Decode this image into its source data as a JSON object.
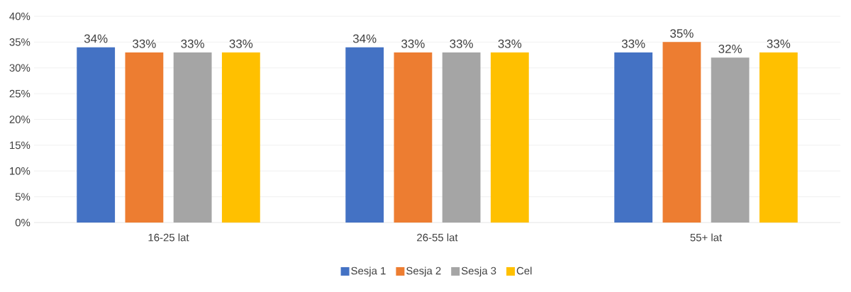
{
  "chart_data": {
    "type": "bar",
    "categories": [
      "16-25 lat",
      "26-55 lat",
      "55+ lat"
    ],
    "series": [
      {
        "name": "Sesja 1",
        "color": "#4472c4",
        "values": [
          34,
          34,
          33
        ],
        "value_labels": [
          "34%",
          "34%",
          "33%"
        ]
      },
      {
        "name": "Sesja 2",
        "color": "#ed7d31",
        "values": [
          33,
          33,
          35
        ],
        "value_labels": [
          "33%",
          "33%",
          "35%"
        ]
      },
      {
        "name": "Sesja 3",
        "color": "#a5a5a5",
        "values": [
          33,
          33,
          32
        ],
        "value_labels": [
          "33%",
          "33%",
          "32%"
        ]
      },
      {
        "name": "Cel",
        "color": "#ffc000",
        "values": [
          33,
          33,
          33
        ],
        "value_labels": [
          "33%",
          "33%",
          "33%"
        ]
      }
    ],
    "ylim": [
      0,
      40
    ],
    "yticks": [
      {
        "value": 0,
        "label": "0%"
      },
      {
        "value": 5,
        "label": "5%"
      },
      {
        "value": 10,
        "label": "10%"
      },
      {
        "value": 15,
        "label": "15%"
      },
      {
        "value": 20,
        "label": "20%"
      },
      {
        "value": 25,
        "label": "25%"
      },
      {
        "value": 30,
        "label": "30%"
      },
      {
        "value": 35,
        "label": "35%"
      },
      {
        "value": 40,
        "label": "40%"
      }
    ],
    "grid": "y",
    "legend": "bottom"
  }
}
